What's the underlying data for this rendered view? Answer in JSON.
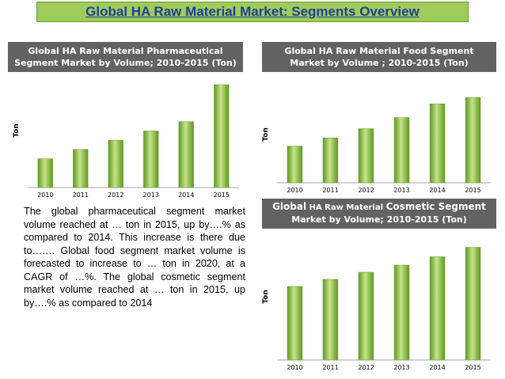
{
  "title": "Global HA Raw Material Market: Segments Overview",
  "colors": {
    "bar_light": "#c6e38a",
    "bar_dark": "#5e9a1f",
    "header_bg": "#626262",
    "title_bg": "#9fcb5a",
    "title_text": "#1f3f99"
  },
  "paragraph": "The global pharmaceutical segment market volume reached at … ton in 2015, up by….% as compared to 2014. This increase is there due to……. Global food segment market volume is forecasted to increase to … ton in 2020, at a CAGR of …%. The global cosmetic segment market volume reached at … ton in 2015, up by….% as compared to 2014",
  "headers": {
    "pharma": "Global HA Raw Material Pharmaceutical Segment Market by Volume; 2010-2015 (Ton)",
    "food": "Global HA Raw Material Food Segment Market by Volume ; 2010-2015 (Ton)",
    "cosmetic_a": "Global",
    "cosmetic_b": " HA Raw Material ",
    "cosmetic_c": "Cosmetic Segment",
    "cosmetic_d": "Market by Volume; 2010-2015 (Ton)"
  },
  "chart_data": [
    {
      "type": "bar",
      "title": "Global HA Raw Material Pharmaceutical Segment Market by Volume; 2010-2015 (Ton)",
      "categories": [
        "2010",
        "2011",
        "2012",
        "2013",
        "2014",
        "2015"
      ],
      "values": [
        28,
        37,
        46,
        55,
        64,
        100
      ],
      "ylabel": "Ton",
      "xlabel": "",
      "ylim": [
        0,
        100
      ],
      "grid": false
    },
    {
      "type": "bar",
      "title": "Global HA Raw Material Food Segment Market by Volume ; 2010-2015 (Ton)",
      "categories": [
        "2010",
        "2011",
        "2012",
        "2013",
        "2014",
        "2015"
      ],
      "values": [
        40,
        49,
        59,
        71,
        86,
        93
      ],
      "ylabel": "Ton",
      "xlabel": "",
      "ylim": [
        0,
        100
      ],
      "grid": false
    },
    {
      "type": "bar",
      "title": "Global HA Raw Material Cosmetic Segment Market by Volume; 2010-2015 (Ton)",
      "categories": [
        "2010",
        "2011",
        "2012",
        "2013",
        "2014",
        "2015"
      ],
      "values": [
        62,
        68,
        74,
        80,
        87,
        95
      ],
      "ylabel": "Ton",
      "xlabel": "",
      "ylim": [
        0,
        100
      ],
      "grid": false
    }
  ]
}
